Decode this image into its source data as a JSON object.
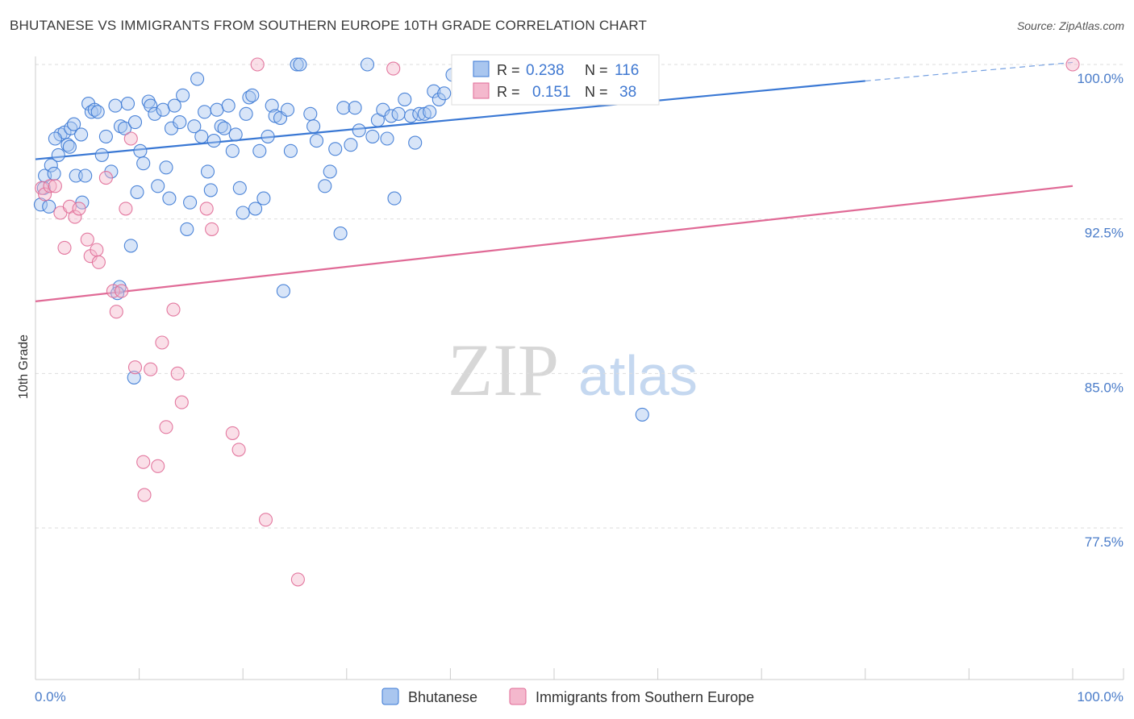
{
  "title": "BHUTANESE VS IMMIGRANTS FROM SOUTHERN EUROPE 10TH GRADE CORRELATION CHART",
  "source": "Source: ZipAtlas.com",
  "watermark": {
    "zip": "ZIP",
    "atlas": "atlas"
  },
  "colors": {
    "blue": "#3a78d4",
    "blue_fill": "#a9c6ef",
    "pink": "#e06a96",
    "pink_fill": "#f4b8cd",
    "grid": "#dddddd",
    "tick_text": "#4a7cc9"
  },
  "chart_data": {
    "type": "scatter",
    "title": "BHUTANESE VS IMMIGRANTS FROM SOUTHERN EUROPE 10TH GRADE CORRELATION CHART",
    "xlabel": "",
    "ylabel": "10th Grade",
    "xlim": [
      0,
      100
    ],
    "ylim": [
      70.0,
      101.5
    ],
    "x_tick_labels": [
      "0.0%",
      "100.0%"
    ],
    "y_ticks": [
      100.0,
      92.5,
      85.0,
      77.5
    ],
    "y_tick_labels": [
      "100.0%",
      "92.5%",
      "85.0%",
      77.5
    ],
    "y_tick_text": [
      "100.0%",
      "92.5%",
      "85.0%",
      "77.5%"
    ],
    "legend_position": "top-center",
    "stats": [
      {
        "name": "Bhutanese",
        "r_label": "R =",
        "r_value": "0.238",
        "n_label": "N =",
        "n_value": "116"
      },
      {
        "name": "Immigrants from Southern Europe",
        "r_label": "R =",
        "r_value": "0.151",
        "n_label": "N =",
        "n_value": "38"
      }
    ],
    "bottom_legend": [
      "Bhutanese",
      "Immigrants from Southern Europe"
    ],
    "series": [
      {
        "name": "Bhutanese",
        "color": "#3a78d4",
        "trend": {
          "x0": 0,
          "y0": 95.4,
          "x1": 80,
          "y1": 99.2,
          "dash_x1": 100,
          "dash_y1": 100.1
        },
        "points": [
          [
            0.5,
            93.2
          ],
          [
            0.8,
            94.0
          ],
          [
            0.9,
            94.6
          ],
          [
            1.3,
            93.1
          ],
          [
            1.5,
            95.1
          ],
          [
            1.8,
            94.7
          ],
          [
            2.2,
            95.6
          ],
          [
            2.4,
            96.6
          ],
          [
            2.8,
            96.7
          ],
          [
            3.1,
            96.1
          ],
          [
            3.4,
            96.9
          ],
          [
            3.7,
            97.1
          ],
          [
            3.9,
            94.6
          ],
          [
            4.4,
            96.6
          ],
          [
            4.8,
            94.6
          ],
          [
            5.1,
            98.1
          ],
          [
            5.4,
            97.7
          ],
          [
            5.7,
            97.8
          ],
          [
            6.0,
            97.7
          ],
          [
            6.4,
            95.6
          ],
          [
            6.8,
            96.5
          ],
          [
            7.3,
            94.8
          ],
          [
            7.7,
            98.0
          ],
          [
            8.2,
            97.0
          ],
          [
            8.6,
            96.9
          ],
          [
            8.9,
            98.1
          ],
          [
            9.2,
            91.2
          ],
          [
            9.6,
            97.2
          ],
          [
            10.1,
            95.8
          ],
          [
            10.4,
            95.2
          ],
          [
            10.9,
            98.2
          ],
          [
            11.1,
            98.0
          ],
          [
            11.5,
            97.6
          ],
          [
            11.8,
            94.1
          ],
          [
            12.3,
            97.8
          ],
          [
            12.6,
            95.0
          ],
          [
            12.9,
            93.5
          ],
          [
            13.1,
            96.9
          ],
          [
            13.4,
            98.0
          ],
          [
            13.9,
            97.2
          ],
          [
            14.2,
            98.5
          ],
          [
            14.6,
            92.0
          ],
          [
            14.9,
            93.3
          ],
          [
            15.3,
            97.0
          ],
          [
            15.6,
            99.3
          ],
          [
            16.0,
            96.5
          ],
          [
            16.3,
            97.7
          ],
          [
            16.6,
            94.8
          ],
          [
            16.9,
            93.9
          ],
          [
            17.2,
            96.3
          ],
          [
            17.5,
            97.8
          ],
          [
            17.9,
            97.0
          ],
          [
            18.2,
            96.9
          ],
          [
            18.6,
            98.0
          ],
          [
            19.0,
            95.8
          ],
          [
            19.3,
            96.6
          ],
          [
            19.7,
            94.0
          ],
          [
            20.0,
            92.8
          ],
          [
            20.3,
            97.6
          ],
          [
            20.6,
            98.4
          ],
          [
            20.9,
            98.5
          ],
          [
            21.2,
            93.0
          ],
          [
            21.6,
            95.8
          ],
          [
            22.0,
            93.5
          ],
          [
            22.4,
            96.5
          ],
          [
            22.8,
            98.0
          ],
          [
            23.1,
            97.5
          ],
          [
            23.6,
            97.4
          ],
          [
            23.9,
            89.0
          ],
          [
            24.3,
            97.8
          ],
          [
            24.6,
            95.8
          ],
          [
            25.2,
            100.0
          ],
          [
            25.5,
            100.0
          ],
          [
            26.5,
            97.6
          ],
          [
            26.8,
            97.0
          ],
          [
            27.1,
            96.3
          ],
          [
            27.9,
            94.1
          ],
          [
            28.4,
            94.8
          ],
          [
            28.9,
            95.9
          ],
          [
            29.4,
            91.8
          ],
          [
            29.7,
            97.9
          ],
          [
            30.4,
            96.1
          ],
          [
            30.8,
            97.9
          ],
          [
            31.2,
            96.8
          ],
          [
            32.0,
            100.0
          ],
          [
            32.5,
            96.5
          ],
          [
            33.0,
            97.3
          ],
          [
            33.5,
            97.8
          ],
          [
            33.9,
            96.4
          ],
          [
            34.3,
            97.5
          ],
          [
            34.6,
            93.5
          ],
          [
            35.0,
            97.6
          ],
          [
            35.6,
            98.3
          ],
          [
            36.2,
            97.5
          ],
          [
            36.6,
            96.2
          ],
          [
            37.0,
            97.6
          ],
          [
            37.5,
            97.6
          ],
          [
            38.0,
            97.7
          ],
          [
            38.4,
            98.7
          ],
          [
            38.9,
            98.3
          ],
          [
            39.4,
            98.6
          ],
          [
            40.2,
            99.5
          ],
          [
            40.8,
            99.6
          ],
          [
            42.3,
            99.5
          ],
          [
            44.9,
            99.8
          ],
          [
            47.0,
            99.5
          ],
          [
            49.5,
            99.8
          ],
          [
            52.5,
            100.0
          ],
          [
            58.5,
            83.0
          ],
          [
            9.5,
            84.8
          ],
          [
            8.1,
            89.2
          ],
          [
            7.9,
            88.9
          ],
          [
            4.5,
            93.3
          ],
          [
            9.8,
            93.8
          ],
          [
            1.9,
            96.4
          ],
          [
            3.3,
            96.0
          ]
        ]
      },
      {
        "name": "Immigrants from Southern Europe",
        "color": "#e06a96",
        "trend": {
          "x0": 0,
          "y0": 88.5,
          "x1": 100,
          "y1": 94.1
        },
        "points": [
          [
            0.6,
            94.0
          ],
          [
            0.9,
            93.7
          ],
          [
            1.4,
            94.1
          ],
          [
            1.9,
            94.1
          ],
          [
            2.4,
            92.8
          ],
          [
            2.8,
            91.1
          ],
          [
            3.3,
            93.1
          ],
          [
            3.8,
            92.6
          ],
          [
            4.2,
            93.0
          ],
          [
            5.0,
            91.5
          ],
          [
            5.3,
            90.7
          ],
          [
            5.9,
            91.0
          ],
          [
            6.1,
            90.4
          ],
          [
            6.8,
            94.5
          ],
          [
            7.5,
            89.0
          ],
          [
            7.8,
            88.0
          ],
          [
            8.3,
            89.0
          ],
          [
            8.7,
            93.0
          ],
          [
            9.2,
            96.4
          ],
          [
            9.6,
            85.3
          ],
          [
            10.4,
            80.7
          ],
          [
            10.5,
            79.1
          ],
          [
            11.1,
            85.2
          ],
          [
            11.8,
            80.5
          ],
          [
            12.2,
            86.5
          ],
          [
            12.6,
            82.4
          ],
          [
            13.3,
            88.1
          ],
          [
            13.7,
            85.0
          ],
          [
            14.1,
            83.6
          ],
          [
            16.5,
            93.0
          ],
          [
            17.0,
            92.0
          ],
          [
            19.0,
            82.1
          ],
          [
            19.6,
            81.3
          ],
          [
            21.4,
            100.0
          ],
          [
            22.2,
            77.9
          ],
          [
            25.3,
            75.0
          ],
          [
            34.5,
            99.8
          ],
          [
            100.0,
            100.0
          ]
        ]
      }
    ]
  }
}
